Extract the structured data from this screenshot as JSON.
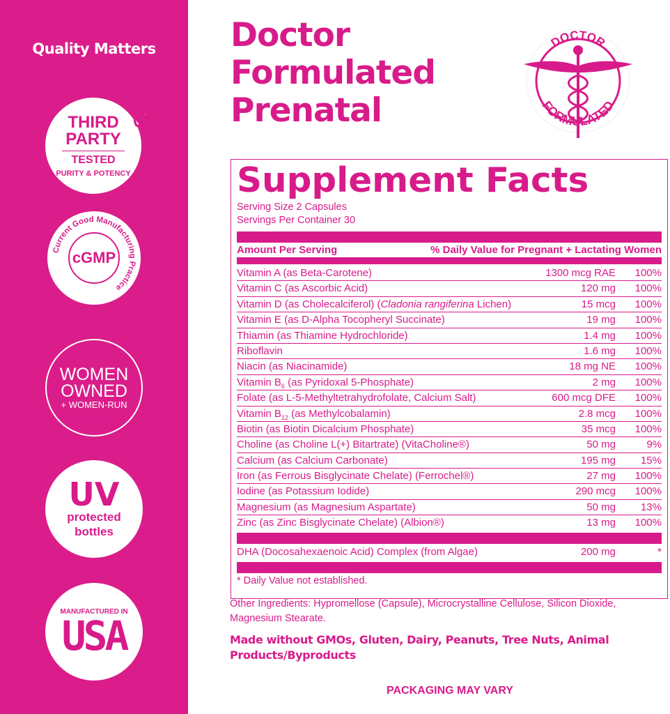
{
  "colors": {
    "brand": "#d81b8a",
    "background": "#ffffff"
  },
  "sidebar": {
    "heading": "Quality Matters",
    "badges": {
      "third_party": {
        "line1": "THIRD",
        "line2": "PARTY",
        "tested": "TESTED",
        "arc": "PURITY & POTENCY",
        "icon": "checkmark-icon"
      },
      "cgmp": {
        "center": "cGMP",
        "ring": "Current Good Manufacturing Practice"
      },
      "women": {
        "line1": "WOMEN",
        "line2": "OWNED",
        "line3": "+ WOMEN-RUN"
      },
      "uv": {
        "big": "UV",
        "line1": "protected",
        "line2": "bottles"
      },
      "usa": {
        "small": "MANUFACTURED IN",
        "big": "USA"
      }
    }
  },
  "title": {
    "line1": "Doctor",
    "line2": "Formulated",
    "line3": "Prenatal"
  },
  "seal": {
    "top": "DOCTOR",
    "bottom": "FORMULATED",
    "icon": "caduceus-icon"
  },
  "facts": {
    "heading": "Supplement Facts",
    "serving_size": "Serving Size 2 Capsules",
    "servings_per_container": "Servings Per Container 30",
    "col_amount": "Amount Per Serving",
    "col_dv": "% Daily Value for Pregnant + Lactating Women",
    "rows": [
      {
        "name": [
          {
            "t": "Vitamin A (as Beta-Carotene)"
          }
        ],
        "amount": "1300 mcg RAE",
        "dv": "100%"
      },
      {
        "name": [
          {
            "t": "Vitamin C (as Ascorbic Acid)"
          }
        ],
        "amount": "120 mg",
        "dv": "100%"
      },
      {
        "name": [
          {
            "t": "Vitamin D (as Cholecalciferol) ("
          },
          {
            "t": "Cladonia rangiferina",
            "i": true
          },
          {
            "t": " Lichen)"
          }
        ],
        "amount": "15 mcg",
        "dv": "100%"
      },
      {
        "name": [
          {
            "t": "Vitamin E (as D-Alpha Tocopheryl Succinate)"
          }
        ],
        "amount": "19 mg",
        "dv": "100%"
      },
      {
        "name": [
          {
            "t": "Thiamin (as Thiamine Hydrochloride)"
          }
        ],
        "amount": "1.4 mg",
        "dv": "100%"
      },
      {
        "name": [
          {
            "t": "Riboflavin"
          }
        ],
        "amount": "1.6 mg",
        "dv": "100%"
      },
      {
        "name": [
          {
            "t": "Niacin (as Niacinamide)"
          }
        ],
        "amount": "18 mg NE",
        "dv": "100%"
      },
      {
        "name": [
          {
            "t": "Vitamin B"
          },
          {
            "t": "6",
            "sub": true
          },
          {
            "t": " (as Pyridoxal 5-Phosphate)"
          }
        ],
        "amount": "2 mg",
        "dv": "100%"
      },
      {
        "name": [
          {
            "t": "Folate (as L-5-Methyltetrahydrofolate, Calcium Salt)"
          }
        ],
        "amount": "600 mcg DFE",
        "dv": "100%"
      },
      {
        "name": [
          {
            "t": "Vitamin B"
          },
          {
            "t": "12",
            "sub": true
          },
          {
            "t": " (as Methylcobalamin)"
          }
        ],
        "amount": "2.8 mcg",
        "dv": "100%"
      },
      {
        "name": [
          {
            "t": "Biotin (as Biotin Dicalcium Phosphate)"
          }
        ],
        "amount": "35 mcg",
        "dv": "100%"
      },
      {
        "name": [
          {
            "t": "Choline (as Choline L(+) Bitartrate) (VitaCholine®)"
          }
        ],
        "amount": "50 mg",
        "dv": "9%"
      },
      {
        "name": [
          {
            "t": "Calcium (as Calcium Carbonate)"
          }
        ],
        "amount": "195 mg",
        "dv": "15%"
      },
      {
        "name": [
          {
            "t": "Iron (as Ferrous Bisglycinate Chelate) (Ferrochel®)"
          }
        ],
        "amount": "27 mg",
        "dv": "100%"
      },
      {
        "name": [
          {
            "t": "Iodine (as Potassium Iodide)"
          }
        ],
        "amount": "290 mcg",
        "dv": "100%"
      },
      {
        "name": [
          {
            "t": "Magnesium (as Magnesium Aspartate)"
          }
        ],
        "amount": "50 mg",
        "dv": "13%"
      },
      {
        "name": [
          {
            "t": "Zinc (as Zinc Bisglycinate Chelate) (Albion®)"
          }
        ],
        "amount": "13 mg",
        "dv": "100%"
      }
    ],
    "dha": {
      "name": [
        {
          "t": "DHA (Docosahexaenoic Acid) Complex (from Algae)"
        }
      ],
      "amount": "200 mg",
      "dv": "*"
    },
    "footnote": "* Daily Value not established."
  },
  "other_ingredients": "Other Ingredients: Hypromellose (Capsule), Microcrystalline Cellulose, Silicon Dioxide, Magnesium Stearate.",
  "free_from": "Made without GMOs, Gluten, Dairy, Peanuts, Tree Nuts, Animal Products/Byproducts",
  "packaging_note": "PACKAGING MAY VARY"
}
